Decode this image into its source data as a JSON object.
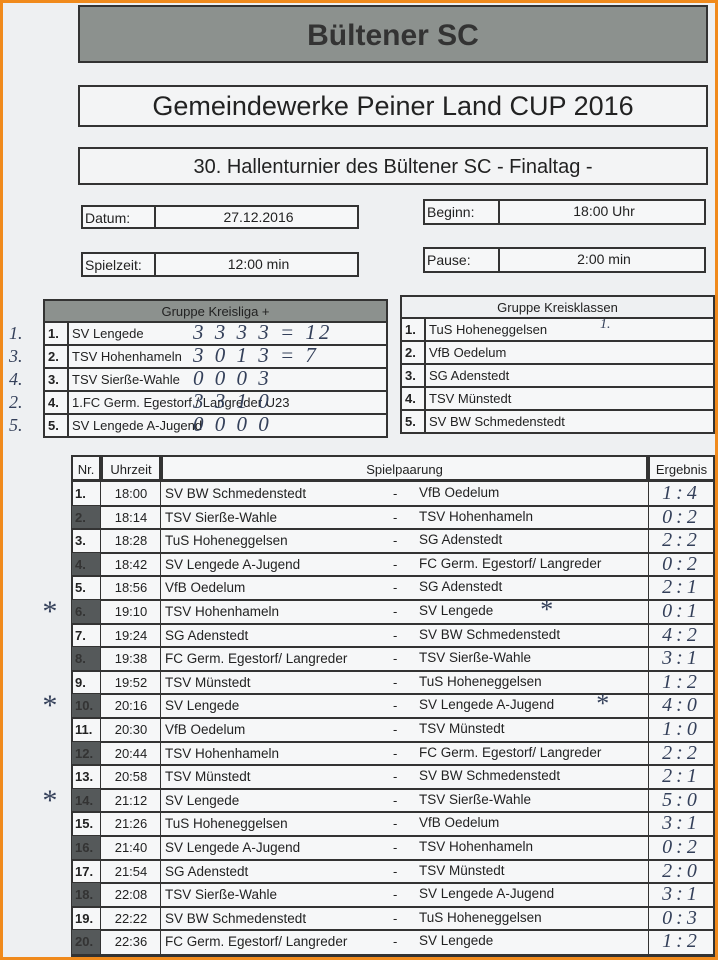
{
  "header": {
    "club": "Bültener SC",
    "cup": "Gemeindewerke Peiner Land CUP 2016",
    "subtitle": "30. Hallenturnier des Bültener SC - Finaltag -"
  },
  "info": [
    {
      "label": "Datum:",
      "value": "27.12.2016"
    },
    {
      "label": "Beginn:",
      "value": "18:00 Uhr"
    },
    {
      "label": "Spielzeit:",
      "value": "12:00 min"
    },
    {
      "label": "Pause:",
      "value": "2:00 min"
    }
  ],
  "groups": [
    {
      "title": "Gruppe Kreisliga +",
      "teams": [
        {
          "nr": "1.",
          "name": "SV Lengede",
          "rank": "1.",
          "points": "3 3 3 3 = 12"
        },
        {
          "nr": "2.",
          "name": "TSV Hohenhameln",
          "rank": "3.",
          "points": "3 0 1 3 = 7"
        },
        {
          "nr": "3.",
          "name": "TSV Sierße-Wahle",
          "rank": "4.",
          "points": "0 0 0 3"
        },
        {
          "nr": "4.",
          "name": "1.FC Germ. Egestorf / Langreder U23",
          "rank": "2.",
          "points": "3 3 1 0"
        },
        {
          "nr": "5.",
          "name": "SV Lengede A-Jugend",
          "rank": "5.",
          "points": "0 0 0 0"
        }
      ]
    },
    {
      "title": "Gruppe Kreisklassen",
      "teams": [
        {
          "nr": "1.",
          "name": "TuS Hoheneggelsen",
          "points": "1."
        },
        {
          "nr": "2.",
          "name": "VfB Oedelum"
        },
        {
          "nr": "3.",
          "name": "SG Adenstedt"
        },
        {
          "nr": "4.",
          "name": "TSV Münstedt"
        },
        {
          "nr": "5.",
          "name": "SV BW Schmedenstedt"
        }
      ]
    }
  ],
  "matches": {
    "columns": [
      "Nr.",
      "Uhrzeit",
      "Spielpaarung",
      "Ergebnis"
    ],
    "rows": [
      {
        "nr": "1.",
        "time": "18:00",
        "home": "SV BW Schmedenstedt",
        "sep": "-",
        "away": "VfB Oedelum",
        "result": "1:4"
      },
      {
        "nr": "2.",
        "time": "18:14",
        "home": "TSV Sierße-Wahle",
        "sep": "-",
        "away": "TSV Hohenhameln",
        "result": "0:2"
      },
      {
        "nr": "3.",
        "time": "18:28",
        "home": "TuS Hoheneggelsen",
        "sep": "-",
        "away": "SG Adenstedt",
        "result": "2:2"
      },
      {
        "nr": "4.",
        "time": "18:42",
        "home": "SV Lengede A-Jugend",
        "sep": "-",
        "away": "FC Germ. Egestorf/ Langreder",
        "result": "0:2"
      },
      {
        "nr": "5.",
        "time": "18:56",
        "home": "VfB Oedelum",
        "sep": "-",
        "away": "SG Adenstedt",
        "result": "2:1"
      },
      {
        "nr": "6.",
        "time": "19:10",
        "home": "TSV Hohenhameln",
        "sep": "-",
        "away": "SV Lengede",
        "result": "0:1",
        "mark": "*",
        "away_mark": "*"
      },
      {
        "nr": "7.",
        "time": "19:24",
        "home": "SG Adenstedt",
        "sep": "-",
        "away": "SV BW Schmedenstedt",
        "result": "4:2"
      },
      {
        "nr": "8.",
        "time": "19:38",
        "home": "FC Germ. Egestorf/ Langreder",
        "sep": "-",
        "away": "TSV Sierße-Wahle",
        "result": "3:1"
      },
      {
        "nr": "9.",
        "time": "19:52",
        "home": "TSV Münstedt",
        "sep": "-",
        "away": "TuS Hoheneggelsen",
        "result": "1:2"
      },
      {
        "nr": "10.",
        "time": "20:16",
        "home": "SV Lengede",
        "sep": "-",
        "away": "SV Lengede A-Jugend",
        "result": "4:0",
        "mark": "*",
        "away_mark": "*"
      },
      {
        "nr": "11.",
        "time": "20:30",
        "home": "VfB Oedelum",
        "sep": "-",
        "away": "TSV Münstedt",
        "result": "1:0"
      },
      {
        "nr": "12.",
        "time": "20:44",
        "home": "TSV Hohenhameln",
        "sep": "-",
        "away": "FC Germ. Egestorf/ Langreder",
        "result": "2:2"
      },
      {
        "nr": "13.",
        "time": "20:58",
        "home": "TSV Münstedt",
        "sep": "-",
        "away": "SV BW Schmedenstedt",
        "result": "2:1"
      },
      {
        "nr": "14.",
        "time": "21:12",
        "home": "SV Lengede",
        "sep": "-",
        "away": "TSV Sierße-Wahle",
        "result": "5:0",
        "mark": "*"
      },
      {
        "nr": "15.",
        "time": "21:26",
        "home": "TuS Hoheneggelsen",
        "sep": "-",
        "away": "VfB Oedelum",
        "result": "3:1"
      },
      {
        "nr": "16.",
        "time": "21:40",
        "home": "SV Lengede A-Jugend",
        "sep": "-",
        "away": "TSV Hohenhameln",
        "result": "0:2"
      },
      {
        "nr": "17.",
        "time": "21:54",
        "home": "SG Adenstedt",
        "sep": "-",
        "away": "TSV Münstedt",
        "result": "2:0"
      },
      {
        "nr": "18.",
        "time": "22:08",
        "home": "TSV Sierße-Wahle",
        "sep": "-",
        "away": "SV Lengede A-Jugend",
        "result": "3:1"
      },
      {
        "nr": "19.",
        "time": "22:22",
        "home": "SV BW Schmedenstedt",
        "sep": "-",
        "away": "TuS Hoheneggelsen",
        "result": "0:3"
      },
      {
        "nr": "20.",
        "time": "22:36",
        "home": "FC Germ. Egestorf/ Langreder",
        "sep": "-",
        "away": "SV Lengede",
        "result": "1:2"
      }
    ]
  }
}
